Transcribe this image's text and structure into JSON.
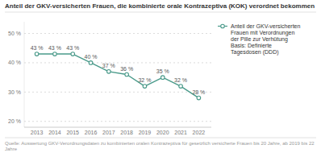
{
  "chart_data": {
    "type": "line",
    "title": "Anteil der GKV-versicherten Frauen, die kombinierte orale Kontrazeptiva (KOK) verordnet bekommen",
    "x": [
      2013,
      2014,
      2015,
      2016,
      2017,
      2018,
      2019,
      2020,
      2021,
      2022
    ],
    "series": [
      {
        "name": "Anteil der GKV-versicherten\nFrauen mit Verordnungen\nder Pille zur Verhütung\nBasis: Definierte\nTagesdosen (DDD)",
        "color": "#4a9a8a",
        "marker": "circle",
        "values": [
          43,
          43,
          43,
          40,
          37,
          36,
          32,
          35,
          32,
          28
        ],
        "value_labels": [
          "43 %",
          "43 %",
          "43 %",
          "40 %",
          "37 %",
          "36 %",
          "32 %",
          "35 %",
          "32 %",
          "28 %"
        ]
      }
    ],
    "xlim": [
      2012.3,
      2022.7
    ],
    "xticks": [
      2013,
      2014,
      2015,
      2016,
      2017,
      2018,
      2019,
      2020,
      2021,
      2022
    ],
    "ylim": [
      18,
      54
    ],
    "yticks": [
      {
        "value": 20,
        "label": "20 %"
      },
      {
        "value": 30,
        "label": "30 %"
      },
      {
        "value": 40,
        "label": "40 %"
      },
      {
        "value": 50,
        "label": "50 %"
      }
    ],
    "grid": true,
    "data_labels": true,
    "legend": "right",
    "annotations": [
      "Quelle: Auswertung GKV-Verordnungsdaten zu kombinierten oralen Kontrazeptiva für gesetzlich versicherte Frauen bis 20 Jahre, ab 2019 bis 22 Jahre"
    ]
  }
}
